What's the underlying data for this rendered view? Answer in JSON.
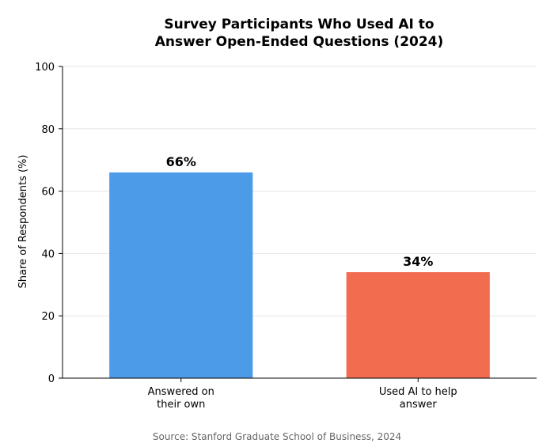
{
  "chart_data": {
    "type": "bar",
    "title": [
      "Survey Participants Who Used AI to",
      "Answer Open-Ended Questions (2024)"
    ],
    "ylabel": "Share of Respondents (%)",
    "xlabel": "",
    "ylim": [
      0,
      100
    ],
    "yticks": [
      0,
      20,
      40,
      60,
      80,
      100
    ],
    "grid": true,
    "categories": [
      [
        "Answered on",
        "their own"
      ],
      [
        "Used AI to help",
        "answer"
      ]
    ],
    "values": [
      66,
      34
    ],
    "data_labels": [
      "66%",
      "34%"
    ],
    "colors": [
      "#4c9be8",
      "#f26c4f"
    ]
  },
  "source": "Source: Stanford Graduate School of Business, 2024"
}
